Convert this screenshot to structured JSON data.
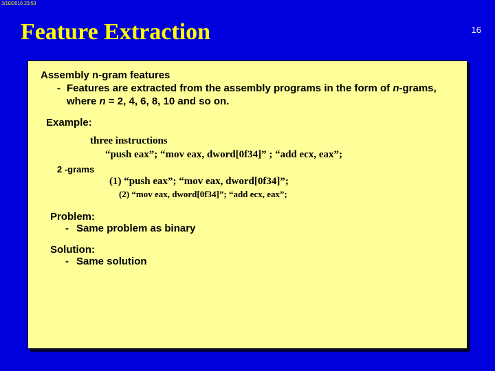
{
  "timestamp": "3/18/2016 23:53",
  "title": "Feature Extraction",
  "page_number": "16",
  "content": {
    "heading": "Assembly n-gram features",
    "bullet_pre": "Features are extracted from the assembly programs in the form of ",
    "bullet_n1": "n",
    "bullet_mid": "-grams,  where ",
    "bullet_n2": "n",
    "bullet_post": " = 2, 4, 6, 8, 10 and so on.",
    "example_label": "Example:",
    "three_instr_label": "three instructions",
    "instr_line": "“push eax”; “mov eax, dword[0f34]” ; “add ecx, eax”;",
    "twograms_label": "2 -grams",
    "gram1": "(1) “push eax”; “mov eax, dword[0f34]”;",
    "gram2": "(2) “mov eax, dword[0f34]”; “add ecx, eax”;",
    "problem_label": "Problem:",
    "problem_item": "Same problem as binary",
    "solution_label": "Solution:",
    "solution_item": "Same solution"
  },
  "colors": {
    "background": "#0000dd",
    "title_color": "#ffff00",
    "box_bg": "#ffff99",
    "page_num_color": "#ffffff"
  }
}
